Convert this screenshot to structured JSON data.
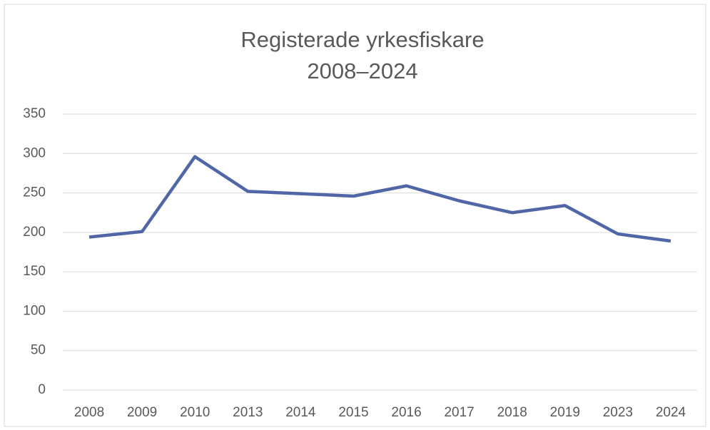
{
  "chart_data": {
    "type": "line",
    "title": "Registerade yrkesfiskare",
    "subtitle": "2008–2024",
    "categories": [
      "2008",
      "2009",
      "2010",
      "2013",
      "2014",
      "2015",
      "2016",
      "2017",
      "2018",
      "2019",
      "2023",
      "2024"
    ],
    "series": [
      {
        "color": "#5166a6",
        "values": [
          194,
          201,
          296,
          252,
          249,
          246,
          259,
          240,
          225,
          234,
          198,
          189
        ]
      }
    ],
    "ylim": [
      0,
      350
    ],
    "yticks": [
      0,
      50,
      100,
      150,
      200,
      250,
      300,
      350
    ],
    "grid": true
  }
}
